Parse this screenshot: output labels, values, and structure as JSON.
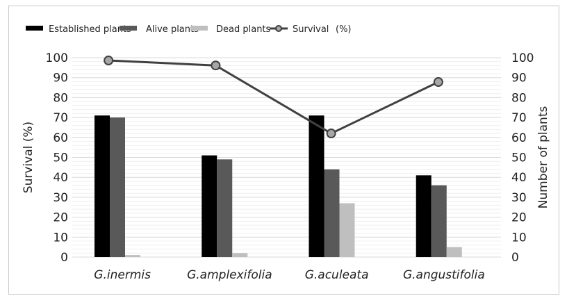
{
  "chart_data": {
    "type": "bar",
    "categories": [
      "G.inermis",
      "G.amplexifolia",
      "G.aculeata",
      "G.angustifolia"
    ],
    "series": [
      {
        "name": "Established plants",
        "kind": "bar",
        "axis": "right",
        "color": "#000000",
        "values": [
          71,
          51,
          71,
          41
        ]
      },
      {
        "name": "Alive plants",
        "kind": "bar",
        "axis": "right",
        "color": "#595959",
        "values": [
          70,
          49,
          44,
          36
        ]
      },
      {
        "name": "Dead plants",
        "kind": "bar",
        "axis": "right",
        "color": "#bfbfbf",
        "values": [
          1,
          2,
          27,
          5
        ]
      },
      {
        "name": "Survival",
        "kind": "line",
        "axis": "left",
        "color": "#404040",
        "marker_color": "#a6a6a6",
        "values": [
          98.6,
          96.1,
          62,
          87.8
        ]
      }
    ],
    "legend_extra": "(%)",
    "ylabel_left": "Survival (%)",
    "ylabel_right": "Number of plants",
    "ylim": [
      0,
      100
    ],
    "yticks": [
      0,
      10,
      20,
      30,
      40,
      50,
      60,
      70,
      80,
      90,
      100
    ],
    "grid": true,
    "legend_position": "top"
  }
}
